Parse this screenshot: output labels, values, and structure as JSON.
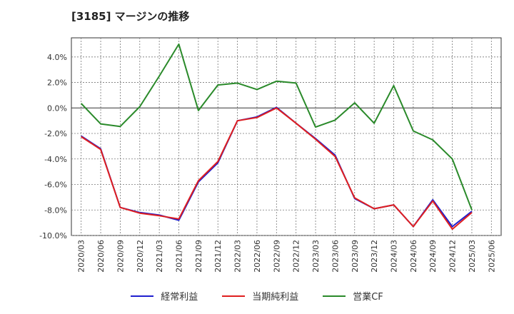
{
  "chart_data": {
    "type": "line",
    "title": "[3185]  マージンの推移",
    "xlabel": "",
    "ylabel": "",
    "x": [
      "2020/03",
      "2020/06",
      "2020/09",
      "2020/12",
      "2021/03",
      "2021/06",
      "2021/09",
      "2021/12",
      "2022/03",
      "2022/06",
      "2022/09",
      "2022/12",
      "2023/03",
      "2023/06",
      "2023/09",
      "2023/12",
      "2024/03",
      "2024/06",
      "2024/09",
      "2024/12",
      "2025/03",
      "2025/06"
    ],
    "ylim": [
      -10,
      5.5
    ],
    "yticks": [
      4,
      2,
      0,
      -2,
      -4,
      -6,
      -8,
      -10
    ],
    "ytick_labels": [
      "4.0%",
      "2.0%",
      "0.0%",
      "-2.0%",
      "-4.0%",
      "-6.0%",
      "-8.0%",
      "-10.0%"
    ],
    "grid": true,
    "legend_position": "bottom",
    "series": [
      {
        "name": "経常利益",
        "color": "#1f1fcf",
        "values": [
          -2.2,
          -3.2,
          -7.8,
          -8.2,
          -8.4,
          -8.8,
          -5.8,
          -4.3,
          -1.0,
          -0.7,
          0.05,
          -1.2,
          -2.4,
          -3.7,
          -7.1,
          -7.9,
          -7.6,
          -9.3,
          -7.2,
          -9.3,
          -8.1,
          null
        ]
      },
      {
        "name": "当期純利益",
        "color": "#e01f1f",
        "values": [
          -2.25,
          -3.25,
          -7.8,
          -8.25,
          -8.45,
          -8.7,
          -5.7,
          -4.2,
          -1.0,
          -0.75,
          0.0,
          -1.2,
          -2.45,
          -3.8,
          -7.05,
          -7.9,
          -7.6,
          -9.3,
          -7.3,
          -9.5,
          -8.2,
          null
        ]
      },
      {
        "name": "営業CF",
        "color": "#2a8a2a",
        "values": [
          0.35,
          -1.25,
          -1.45,
          0.1,
          2.5,
          5.0,
          -0.2,
          1.8,
          1.95,
          1.45,
          2.1,
          1.95,
          -1.5,
          -0.95,
          0.4,
          -1.2,
          1.75,
          -1.8,
          -2.5,
          -4.0,
          -8.0,
          null
        ]
      }
    ]
  }
}
